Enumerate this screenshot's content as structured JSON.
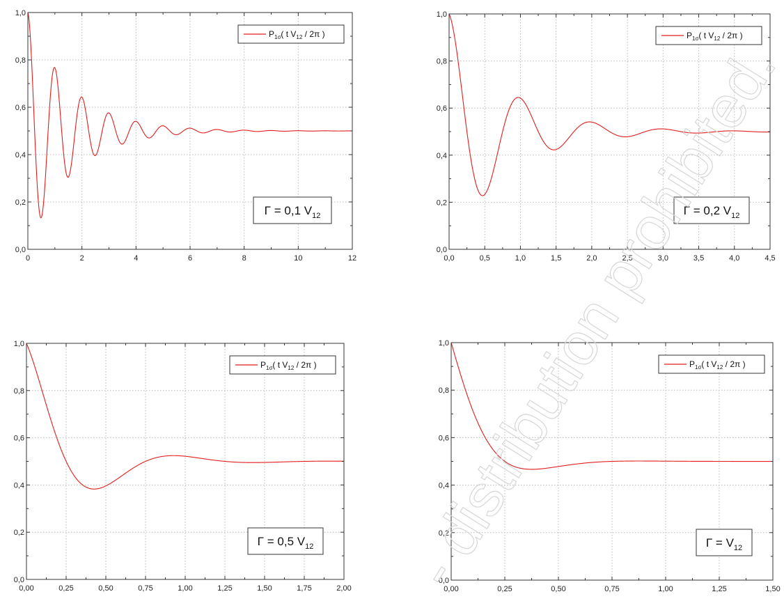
{
  "chart_data": [
    {
      "type": "line",
      "legend": {
        "prefix": "P",
        "sub": "1σ",
        "body": "( t V",
        "body_sub": "12",
        "suffix": " / 2π )"
      },
      "annotation": {
        "main": "Γ = 0,1 V",
        "sub": "12"
      },
      "gamma": 0.1,
      "xlim": [
        0,
        12
      ],
      "ylim": [
        0,
        1
      ],
      "xticks": [
        0,
        2,
        4,
        6,
        8,
        10,
        12
      ],
      "xtick_labels": [
        "0",
        "2",
        "4",
        "6",
        "8",
        "10",
        "12"
      ],
      "yticks": [
        0,
        0.2,
        0.4,
        0.6,
        0.8,
        1.0
      ],
      "ytick_labels": [
        "0,0",
        "0,2",
        "0,4",
        "0,6",
        "0,8",
        "1,0"
      ],
      "legend_position": "top-right",
      "grid": true,
      "series": [
        {
          "color": "#e21c1c"
        }
      ]
    },
    {
      "type": "line",
      "legend": {
        "prefix": "P",
        "sub": "1σ",
        "body": "( t V",
        "body_sub": "12",
        "suffix": " / 2π )"
      },
      "annotation": {
        "main": "Γ = 0,2 V",
        "sub": "12"
      },
      "gamma": 0.2,
      "xlim": [
        0,
        4.5
      ],
      "ylim": [
        0,
        1
      ],
      "xticks": [
        0,
        0.5,
        1.0,
        1.5,
        2.0,
        2.5,
        3.0,
        3.5,
        4.0,
        4.5
      ],
      "xtick_labels": [
        "0,0",
        "0,5",
        "1,0",
        "1,5",
        "2,0",
        "2,5",
        "3,0",
        "3,5",
        "4,0",
        "4,5"
      ],
      "yticks": [
        0,
        0.2,
        0.4,
        0.6,
        0.8,
        1.0
      ],
      "ytick_labels": [
        "0,0",
        "0,2",
        "0,4",
        "0,6",
        "0,8",
        "1,0"
      ],
      "legend_position": "top-right",
      "grid": true,
      "series": [
        {
          "color": "#e21c1c"
        }
      ]
    },
    {
      "type": "line",
      "legend": {
        "prefix": "P",
        "sub": "1σ",
        "body": "( t V",
        "body_sub": "12",
        "suffix": " / 2π )"
      },
      "annotation": {
        "main": "Γ = 0,5 V",
        "sub": "12"
      },
      "gamma": 0.5,
      "xlim": [
        0,
        2.0
      ],
      "ylim": [
        0,
        1
      ],
      "xticks": [
        0,
        0.25,
        0.5,
        0.75,
        1.0,
        1.25,
        1.5,
        1.75,
        2.0
      ],
      "xtick_labels": [
        "0,00",
        "0,25",
        "0,50",
        "0,75",
        "1,00",
        "1,25",
        "1,50",
        "1,75",
        "2,00"
      ],
      "yticks": [
        0,
        0.2,
        0.4,
        0.6,
        0.8,
        1.0
      ],
      "ytick_labels": [
        "0,0",
        "0,2",
        "0,4",
        "0,6",
        "0,8",
        "1,0"
      ],
      "legend_position": "top-right",
      "grid": true,
      "series": [
        {
          "color": "#e21c1c"
        }
      ]
    },
    {
      "type": "line",
      "legend": {
        "prefix": "P",
        "sub": "1σ",
        "body": "( t V",
        "body_sub": "12",
        "suffix": " / 2π )"
      },
      "annotation": {
        "main": "Γ = V",
        "sub": "12"
      },
      "gamma": 1.0,
      "xlim": [
        0,
        1.5
      ],
      "ylim": [
        0,
        1
      ],
      "xticks": [
        0,
        0.25,
        0.5,
        0.75,
        1.0,
        1.25,
        1.5
      ],
      "xtick_labels": [
        "0,00",
        "0,25",
        "0,50",
        "0,75",
        "1,00",
        "1,25",
        "1,50"
      ],
      "yticks": [
        0,
        0.2,
        0.4,
        0.6,
        0.8,
        1.0
      ],
      "ytick_labels": [
        "0,0",
        "0,2",
        "0,4",
        "0,6",
        "0,8",
        "1,0"
      ],
      "legend_position": "top-right",
      "grid": true,
      "series": [
        {
          "color": "#e21c1c"
        }
      ]
    }
  ],
  "watermark": {
    "text": "- distribution prohibited.",
    "color": "#d8d8d8"
  }
}
